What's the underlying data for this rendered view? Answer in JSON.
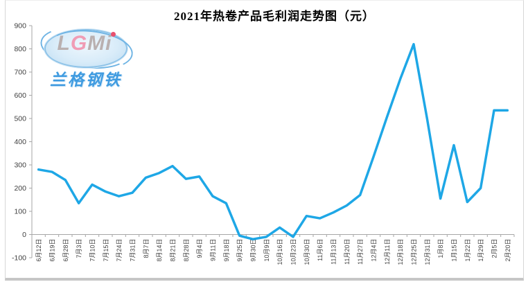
{
  "chart_data": {
    "type": "line",
    "title": "2021年热卷产品毛利润走势图（元）",
    "categories": [
      "6月12日",
      "6月19日",
      "6月28日",
      "7月3日",
      "7月10日",
      "7月15日",
      "7月24日",
      "7月31日",
      "8月7日",
      "8月14日",
      "8月21日",
      "8月28日",
      "9月4日",
      "9月11日",
      "9月18日",
      "9月25日",
      "9月30日",
      "10月9日",
      "10月16日",
      "10月23日",
      "10月30日",
      "11月6日",
      "11月13日",
      "11月20日",
      "11月27日",
      "12月4日",
      "12月11日",
      "12月18日",
      "12月25日",
      "12月31日",
      "1月8日",
      "1月15日",
      "1月22日",
      "1月29日",
      "2月5日",
      "2月20日"
    ],
    "values": [
      280,
      270,
      235,
      135,
      215,
      185,
      165,
      180,
      245,
      265,
      295,
      240,
      250,
      165,
      135,
      -5,
      -20,
      -10,
      30,
      -10,
      80,
      70,
      95,
      125,
      170,
      335,
      505,
      670,
      820,
      500,
      155,
      385,
      140,
      200,
      535,
      535
    ],
    "series_name": "热卷产品毛利润",
    "xlabel": "",
    "ylabel": "",
    "ylim": [
      -100,
      900
    ],
    "ytick_step": 100,
    "ytick_labels": [
      "900",
      "800",
      "700",
      "600",
      "500",
      "400",
      "300",
      "200",
      "100",
      "0",
      "-100"
    ],
    "grid": false,
    "legend_position": "none",
    "line_color": "#1ea7e6",
    "axis_color": "#a6a6a6",
    "label_color": "#404040"
  },
  "logo": {
    "letters": [
      {
        "ch": "L",
        "color": "#b9b0b0"
      },
      {
        "ch": "G",
        "color": "#f09cb5"
      },
      {
        "ch": "M",
        "color": "#b9b0b0"
      },
      {
        "ch": "i",
        "color": "#b9b0b0"
      }
    ],
    "subtext": "兰格钢铁"
  }
}
